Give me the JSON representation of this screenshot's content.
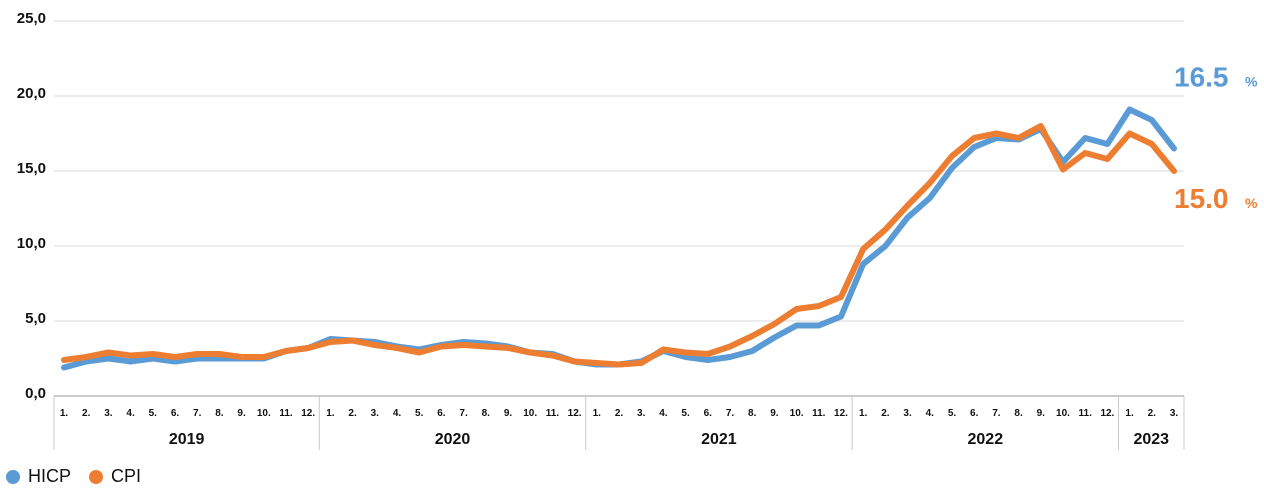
{
  "chart_data": {
    "type": "line",
    "title": "",
    "xlabel": "",
    "ylabel": "",
    "ylim": [
      0,
      25
    ],
    "y_ticks": [
      "0,0",
      "5,0",
      "10,0",
      "15,0",
      "20,0",
      "25,0"
    ],
    "y_tick_values": [
      0,
      5,
      10,
      15,
      20,
      25
    ],
    "grid": true,
    "legend_position": "bottom-left",
    "month_labels": [
      "1.",
      "2.",
      "3.",
      "4.",
      "5.",
      "6.",
      "7.",
      "8.",
      "9.",
      "10.",
      "11.",
      "12.",
      "1.",
      "2.",
      "3.",
      "4.",
      "5.",
      "6.",
      "7.",
      "8.",
      "9.",
      "10.",
      "11.",
      "12.",
      "1.",
      "2.",
      "3.",
      "4.",
      "5.",
      "6.",
      "7.",
      "8.",
      "9.",
      "10.",
      "11.",
      "12.",
      "1.",
      "2.",
      "3.",
      "4.",
      "5.",
      "6.",
      "7.",
      "8.",
      "9.",
      "10.",
      "11.",
      "12.",
      "1.",
      "2.",
      "3."
    ],
    "years": [
      {
        "label": "2019",
        "months": 12
      },
      {
        "label": "2020",
        "months": 12
      },
      {
        "label": "2021",
        "months": 12
      },
      {
        "label": "2022",
        "months": 12
      },
      {
        "label": "2023",
        "months": 3
      }
    ],
    "series": [
      {
        "name": "HICP",
        "color": "#5b9bd5",
        "end_label": "16.5",
        "end_unit": "%",
        "values": [
          1.9,
          2.3,
          2.5,
          2.3,
          2.5,
          2.3,
          2.5,
          2.5,
          2.5,
          2.5,
          3.0,
          3.2,
          3.8,
          3.7,
          3.6,
          3.3,
          3.1,
          3.4,
          3.6,
          3.5,
          3.3,
          2.9,
          2.8,
          2.3,
          2.1,
          2.1,
          2.3,
          3.0,
          2.6,
          2.4,
          2.6,
          3.0,
          3.9,
          4.7,
          4.7,
          5.3,
          8.8,
          10.0,
          11.9,
          13.2,
          15.2,
          16.6,
          17.2,
          17.1,
          17.8,
          15.6,
          17.2,
          16.8,
          19.1,
          18.4,
          16.5
        ]
      },
      {
        "name": "CPI",
        "color": "#ed7d31",
        "end_label": "15.0",
        "end_unit": "%",
        "values": [
          2.4,
          2.6,
          2.9,
          2.7,
          2.8,
          2.6,
          2.8,
          2.8,
          2.6,
          2.6,
          3.0,
          3.2,
          3.6,
          3.7,
          3.4,
          3.2,
          2.9,
          3.3,
          3.4,
          3.3,
          3.2,
          2.9,
          2.7,
          2.3,
          2.2,
          2.1,
          2.2,
          3.1,
          2.9,
          2.8,
          3.3,
          4.0,
          4.8,
          5.8,
          6.0,
          6.6,
          9.8,
          11.1,
          12.7,
          14.2,
          16.0,
          17.2,
          17.5,
          17.2,
          18.0,
          15.1,
          16.2,
          15.8,
          17.5,
          16.8,
          15.0
        ]
      }
    ]
  }
}
